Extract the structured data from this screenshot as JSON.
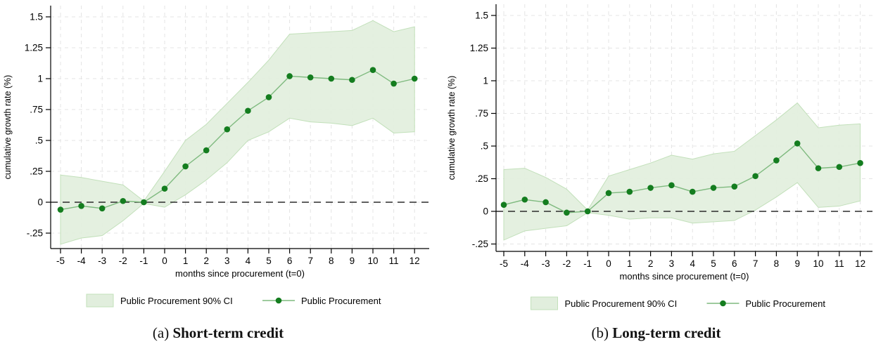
{
  "figure": {
    "y_axis_title": "cumulative growth rate (%)",
    "x_axis_title": "months since procurement (t=0)",
    "y_tick_labels": [
      "1.5",
      "1.25",
      "1",
      ".75",
      ".5",
      ".25",
      "0",
      "-.25"
    ],
    "y_tick_values": [
      1.5,
      1.25,
      1,
      0.75,
      0.5,
      0.25,
      0,
      -0.25
    ],
    "legend": {
      "ci_label": "Public Procurement 90% CI",
      "series_label": "Public Procurement"
    },
    "colors": {
      "ci_fill": "#e1eedd",
      "ci_edge": "#c2e0ba",
      "line": "#7fba7f",
      "marker": "#147d1f",
      "zero_line": "#2b2b2b",
      "grid": "#e4e4e4",
      "axis": "#000000"
    }
  },
  "chart_data": [
    {
      "type": "line+area",
      "panel": "a",
      "caption_prefix": "(a) ",
      "caption_title": "Short-term credit",
      "x_label": "months since procurement (t=0)",
      "y_label": "cumulative growth rate (%)",
      "xlim": [
        -5.5,
        12.7
      ],
      "ylim": [
        -0.38,
        1.59
      ],
      "grid": true,
      "legend_position": "bottom",
      "zero_reference_line": 0,
      "x": [
        -5,
        -4,
        -3,
        -2,
        -1,
        0,
        1,
        2,
        3,
        4,
        5,
        6,
        7,
        8,
        9,
        10,
        11,
        12
      ],
      "series": [
        {
          "name": "Public Procurement",
          "values": [
            -0.06,
            -0.03,
            -0.05,
            0.01,
            0.0,
            0.11,
            0.29,
            0.42,
            0.59,
            0.74,
            0.85,
            1.02,
            1.01,
            1.0,
            0.99,
            1.07,
            0.96,
            1.0
          ]
        }
      ],
      "ci": {
        "name": "Public Procurement 90% CI",
        "level": "90%",
        "upper": [
          0.22,
          0.2,
          0.17,
          0.14,
          0.01,
          0.25,
          0.5,
          0.63,
          0.8,
          0.97,
          1.15,
          1.36,
          1.37,
          1.38,
          1.39,
          1.47,
          1.38,
          1.42
        ],
        "lower": [
          -0.34,
          -0.29,
          -0.27,
          -0.15,
          -0.01,
          -0.04,
          0.06,
          0.18,
          0.32,
          0.5,
          0.57,
          0.68,
          0.65,
          0.64,
          0.62,
          0.68,
          0.56,
          0.57
        ]
      }
    },
    {
      "type": "line+area",
      "panel": "b",
      "caption_prefix": "(b) ",
      "caption_title": "Long-term credit",
      "x_label": "months since procurement (t=0)",
      "y_label": "cumulative growth rate (%)",
      "xlim": [
        -5.5,
        12.7
      ],
      "ylim": [
        -0.31,
        1.59
      ],
      "grid": true,
      "legend_position": "bottom",
      "zero_reference_line": 0,
      "x": [
        -5,
        -4,
        -3,
        -2,
        -1,
        0,
        1,
        2,
        3,
        4,
        5,
        6,
        7,
        8,
        9,
        10,
        11,
        12
      ],
      "series": [
        {
          "name": "Public Procurement",
          "values": [
            0.05,
            0.09,
            0.07,
            -0.01,
            0.0,
            0.14,
            0.15,
            0.18,
            0.2,
            0.15,
            0.18,
            0.19,
            0.27,
            0.39,
            0.52,
            0.33,
            0.34,
            0.37
          ]
        }
      ],
      "ci": {
        "name": "Public Procurement 90% CI",
        "level": "90%",
        "upper": [
          0.32,
          0.33,
          0.26,
          0.17,
          0.01,
          0.27,
          0.32,
          0.37,
          0.43,
          0.4,
          0.44,
          0.46,
          0.58,
          0.7,
          0.83,
          0.64,
          0.66,
          0.67
        ],
        "lower": [
          -0.22,
          -0.15,
          -0.13,
          -0.11,
          -0.01,
          -0.03,
          -0.06,
          -0.05,
          -0.05,
          -0.09,
          -0.08,
          -0.07,
          0.01,
          0.11,
          0.22,
          0.03,
          0.04,
          0.08
        ]
      }
    }
  ]
}
